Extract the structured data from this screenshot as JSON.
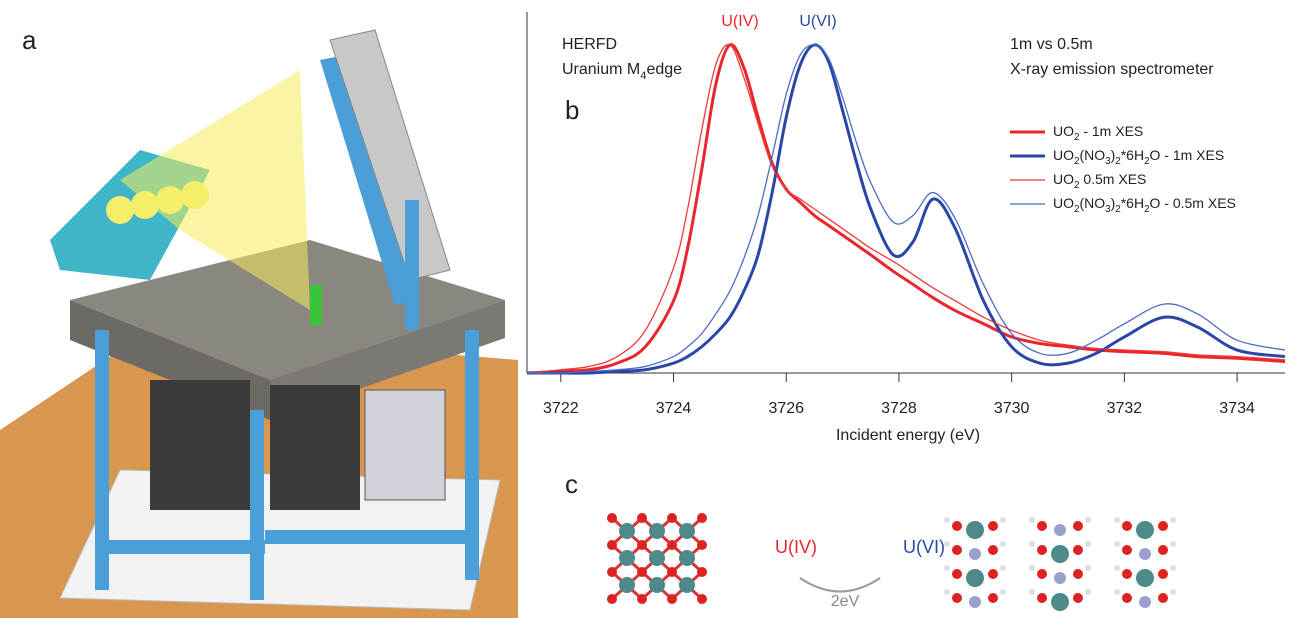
{
  "panels": {
    "a": "a",
    "b": "b",
    "c": "c"
  },
  "chart_data": {
    "type": "line",
    "notes": [
      "HERFD",
      "Uranium M4edge",
      "1m vs 0.5m",
      "X-ray emission spectrometer"
    ],
    "annotations": [
      "U(IV)",
      "U(VI)"
    ],
    "xlabel": "Incident energy (eV)",
    "x": [
      3721.4,
      3722,
      3722.5,
      3723,
      3723.5,
      3724,
      3724.25,
      3724.5,
      3724.75,
      3725,
      3725.25,
      3725.5,
      3725.75,
      3726,
      3726.25,
      3726.5,
      3726.75,
      3727,
      3727.25,
      3727.5,
      3727.9,
      3728.25,
      3728.6,
      3729,
      3729.5,
      3730,
      3730.5,
      3731,
      3731.5,
      3732,
      3732.7,
      3733.3,
      3734,
      3734.85
    ],
    "series": [
      {
        "name": "UO2 - 1m XES",
        "color": "#e8262c",
        "line_width": 3,
        "values": [
          0.0,
          0.005,
          0.01,
          0.03,
          0.08,
          0.22,
          0.38,
          0.62,
          0.88,
          1.0,
          0.93,
          0.78,
          0.64,
          0.56,
          0.52,
          0.48,
          0.45,
          0.42,
          0.39,
          0.36,
          0.31,
          0.27,
          0.23,
          0.19,
          0.15,
          0.11,
          0.09,
          0.08,
          0.07,
          0.065,
          0.06,
          0.05,
          0.045,
          0.035
        ]
      },
      {
        "name": "UO2(NO3)2*6H2O -  1m XES",
        "color": "#2a47a8",
        "line_width": 3,
        "values": [
          0.0,
          0.0,
          0.0,
          0.005,
          0.01,
          0.03,
          0.05,
          0.08,
          0.12,
          0.17,
          0.25,
          0.36,
          0.55,
          0.78,
          0.94,
          1.0,
          0.95,
          0.8,
          0.64,
          0.5,
          0.36,
          0.4,
          0.53,
          0.44,
          0.22,
          0.08,
          0.03,
          0.03,
          0.06,
          0.11,
          0.17,
          0.14,
          0.07,
          0.05
        ]
      },
      {
        "name": "UO2 0.5m XES",
        "color": "#ee3a3a",
        "line_width": 1.3,
        "values": [
          0.0,
          0.01,
          0.02,
          0.05,
          0.13,
          0.32,
          0.5,
          0.74,
          0.94,
          1.0,
          0.9,
          0.76,
          0.63,
          0.56,
          0.53,
          0.5,
          0.47,
          0.44,
          0.41,
          0.38,
          0.34,
          0.3,
          0.26,
          0.22,
          0.17,
          0.13,
          0.1,
          0.085,
          0.075,
          0.07,
          0.065,
          0.055,
          0.05,
          0.04
        ]
      },
      {
        "name": "UO2(NO3)2*6H2O -  0.5m XES",
        "color": "#4a6bc8",
        "line_width": 1.3,
        "values": [
          0.0,
          0.0,
          0.005,
          0.01,
          0.02,
          0.05,
          0.08,
          0.12,
          0.18,
          0.25,
          0.35,
          0.48,
          0.66,
          0.85,
          0.97,
          1.0,
          0.96,
          0.84,
          0.7,
          0.58,
          0.46,
          0.48,
          0.55,
          0.47,
          0.27,
          0.12,
          0.06,
          0.06,
          0.1,
          0.15,
          0.21,
          0.18,
          0.1,
          0.07
        ]
      }
    ],
    "xlim": [
      3721.4,
      3734.85
    ],
    "ylim": [
      0,
      1.07
    ],
    "xticks": [
      3722,
      3724,
      3726,
      3728,
      3730,
      3732,
      3734
    ]
  },
  "structures": {
    "left_label": "U(IV)",
    "right_label": "U(VI)",
    "gap": "2eV"
  }
}
